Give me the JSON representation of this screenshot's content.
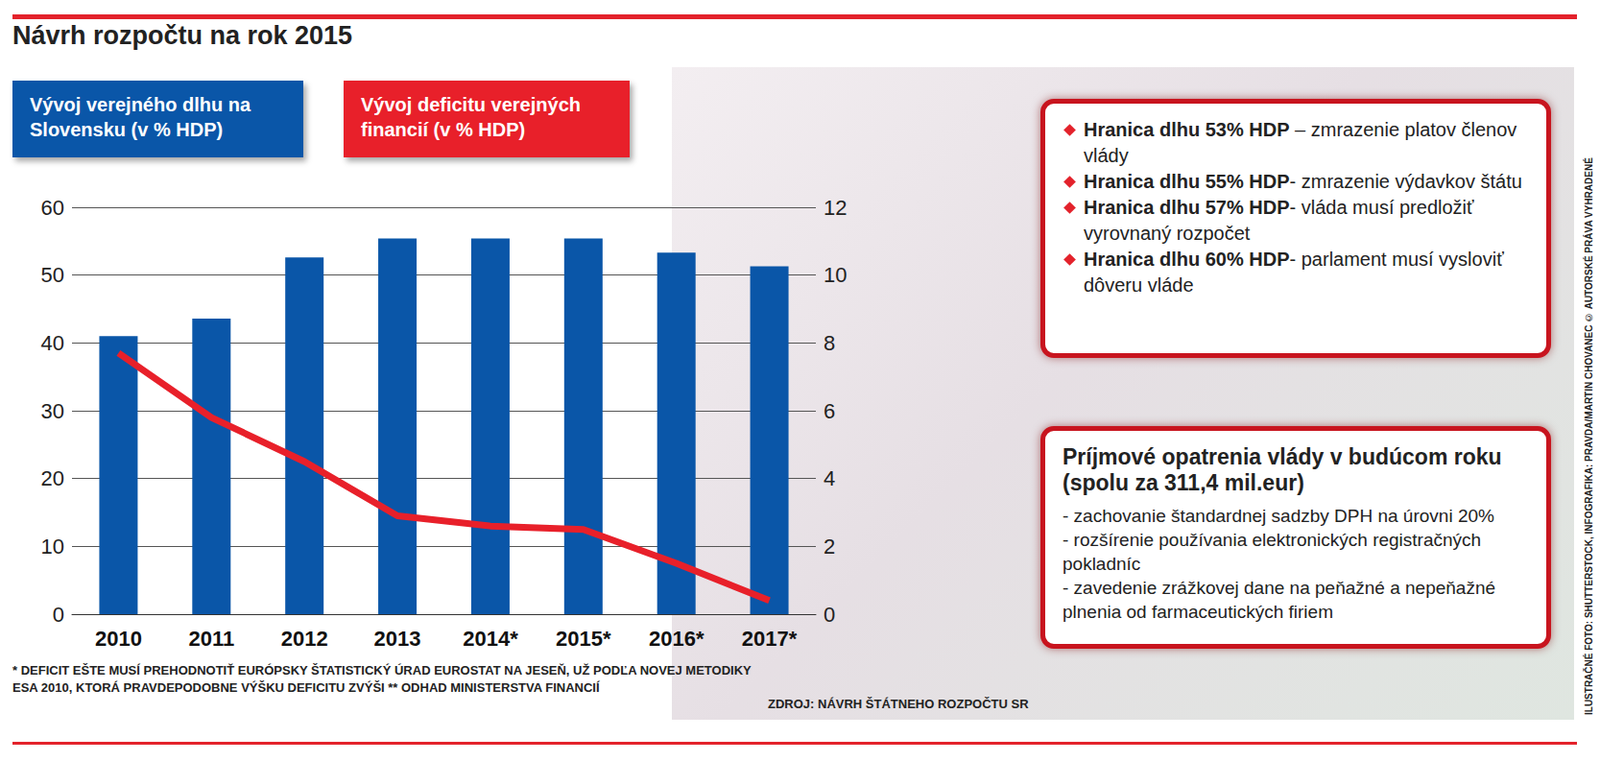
{
  "chart_data": {
    "type": "bar",
    "title": "Návrh rozpočtu na rok 2015",
    "categories": [
      "2010",
      "2011",
      "2012",
      "2013",
      "2014*",
      "2015*",
      "2016*",
      "2017*"
    ],
    "series": [
      {
        "name": "Vývoj verejného dlhu na Slovensku (v % HDP)",
        "type": "bar",
        "color": "#0a56a8",
        "values": [
          41,
          43.6,
          52.6,
          55.4,
          55.4,
          55.4,
          53.3,
          51.3
        ]
      },
      {
        "name": "Vývoj deficitu verejných financií (v % HDP)",
        "type": "line",
        "color": "#e8202a",
        "axis": "y2",
        "values": [
          7.7,
          5.8,
          4.5,
          2.9,
          2.6,
          2.5,
          1.5,
          0.4
        ]
      }
    ],
    "ylim": [
      0,
      60
    ],
    "yticks": [
      0,
      10,
      20,
      30,
      40,
      50,
      60
    ],
    "y2lim": [
      0,
      12
    ],
    "y2ticks": [
      0,
      2,
      4,
      6,
      8,
      10,
      12
    ],
    "grid": true,
    "annotations": {
      "debt_limits": [
        {
          "bold": "Hranica dlhu 53% HDP",
          "text": " – zmrazenie platov členov vlády"
        },
        {
          "bold": "Hranica dlhu 55% HDP",
          "text": "- zmrazenie výdavkov štátu"
        },
        {
          "bold": "Hranica dlhu 57% HDP",
          "text": "- vláda musí predložiť vyrovnaný rozpočet"
        },
        {
          "bold": "Hranica dlhu 60% HDP",
          "text": "- parlament musí vysloviť dôveru vláde"
        }
      ],
      "revenue_box": {
        "title": "Príjmové opatrenia vlády v budúcom roku (spolu za 311,4 mil.eur)",
        "items": [
          "- zachovanie štandardnej sadzby DPH na úrovni 20%",
          "- rozšírenie používania elektronických registračných pokladníc",
          "- zavedenie zrážkovej dane na peňažné a nepeňažné plnenia od farmaceutických firiem"
        ]
      },
      "footnote": "* DEFICIT EŠTE MUSÍ PREHODNOTIŤ EURÓPSKY ŠTATISTICKÝ ÚRAD EUROSTAT NA JESEŇ, UŽ PODĽA NOVEJ METODIKY ESA 2010, KTORÁ PRAVDEPODOBNE VÝŠKU DEFICITU ZVÝŠI ** ODHAD MINISTERSTVA FINANCIÍ",
      "source": "ZDROJ: NÁVRH ŠTÁTNEHO ROZPOČTU SR",
      "credit": "ILUSTRAČNÉ FOTO: SHUTTERSTOCK, INFOGRAFIKA: PRAVDA/MARTIN CHOVANEC © AUTORSKÉ PRÁVA VYHRADENÉ"
    }
  }
}
